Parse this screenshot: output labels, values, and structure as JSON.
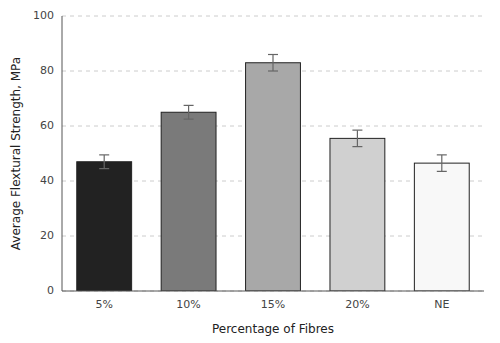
{
  "chart_data": {
    "type": "bar",
    "categories": [
      "5%",
      "10%",
      "15%",
      "20%",
      "NE"
    ],
    "values": [
      47.0,
      65.0,
      83.0,
      55.5,
      46.5
    ],
    "errors": [
      2.5,
      2.5,
      3.0,
      3.0,
      3.0
    ],
    "colors": [
      "#222222",
      "#7a7a7a",
      "#a8a8a8",
      "#d0d0d0",
      "#f8f8f8"
    ],
    "xlabel": "Percentage of Fibres",
    "ylabel": "Average Flextural Strength, MPa",
    "ylim": [
      0,
      100
    ],
    "yticks": [
      0,
      20,
      40,
      60,
      80,
      100
    ],
    "grid": true
  }
}
